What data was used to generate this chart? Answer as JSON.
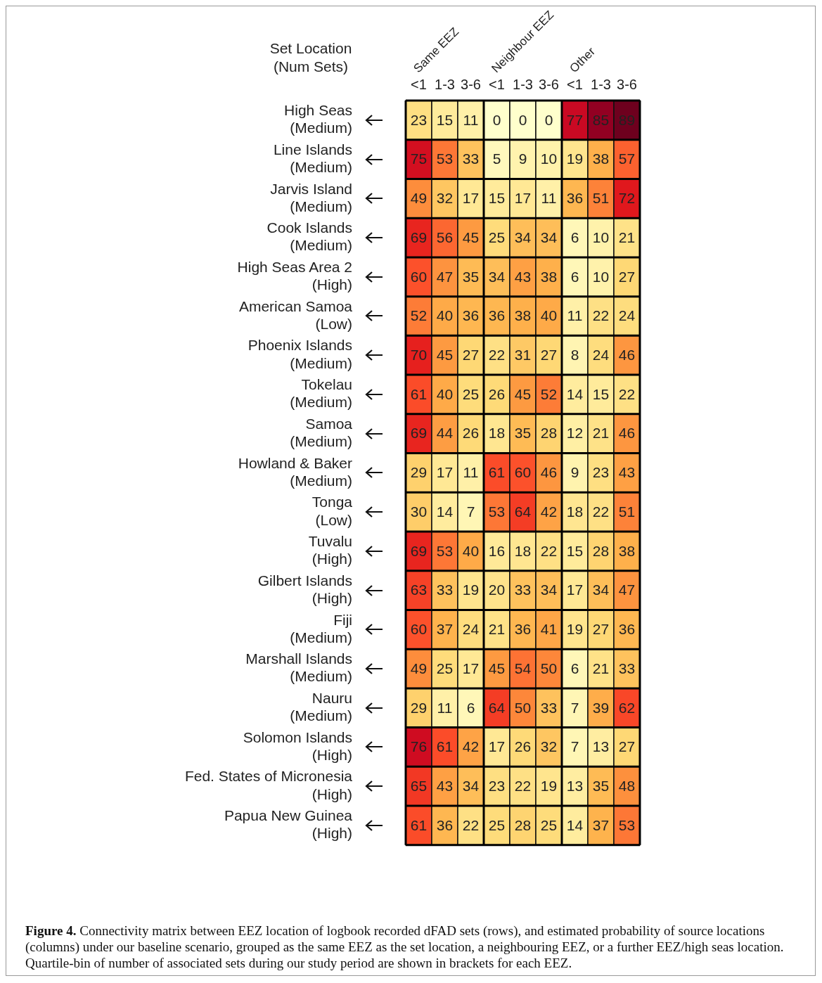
{
  "chart_data": {
    "type": "heatmap",
    "ylabel": "Set Location (Num Sets)",
    "categories": [
      "<1",
      "1-3",
      "3-6",
      "<1",
      "1-3",
      "3-6",
      "<1",
      "1-3",
      "3-6"
    ],
    "y_categories": [
      "High Seas (Medium)",
      "Line Islands (Medium)",
      "Jarvis Island (Medium)",
      "Cook Islands (Medium)",
      "High Seas Area 2 (High)",
      "American Samoa (Low)",
      "Phoenix Islands (Medium)",
      "Tokelau (Medium)",
      "Samoa (Medium)",
      "Howland & Baker (Medium)",
      "Tonga (Low)",
      "Tuvalu (High)",
      "Gilbert Islands (High)",
      "Fiji (Medium)",
      "Marshall Islands (Medium)",
      "Nauru (Medium)",
      "Solomon Islands (High)",
      "Fed. States of Micronesia (High)",
      "Papua New Guinea (High)"
    ],
    "cells": [
      [
        23,
        15,
        11,
        0,
        0,
        0,
        77,
        85,
        89
      ],
      [
        75,
        53,
        33,
        5,
        9,
        10,
        19,
        38,
        57
      ],
      [
        49,
        32,
        17,
        15,
        17,
        11,
        36,
        51,
        72
      ],
      [
        69,
        56,
        45,
        25,
        34,
        34,
        6,
        10,
        21
      ],
      [
        60,
        47,
        35,
        34,
        43,
        38,
        6,
        10,
        27
      ],
      [
        52,
        40,
        36,
        36,
        38,
        40,
        11,
        22,
        24
      ],
      [
        70,
        45,
        27,
        22,
        31,
        27,
        8,
        24,
        46
      ],
      [
        61,
        40,
        25,
        26,
        45,
        52,
        14,
        15,
        22
      ],
      [
        69,
        44,
        26,
        18,
        35,
        28,
        12,
        21,
        46
      ],
      [
        29,
        17,
        11,
        61,
        60,
        46,
        9,
        23,
        43
      ],
      [
        30,
        14,
        7,
        53,
        64,
        42,
        18,
        22,
        51
      ],
      [
        69,
        53,
        40,
        16,
        18,
        22,
        15,
        28,
        38
      ],
      [
        63,
        33,
        19,
        20,
        33,
        34,
        17,
        34,
        47
      ],
      [
        60,
        37,
        24,
        21,
        36,
        41,
        19,
        27,
        36
      ],
      [
        49,
        25,
        17,
        45,
        54,
        50,
        6,
        21,
        33
      ],
      [
        29,
        11,
        6,
        64,
        50,
        33,
        7,
        39,
        62
      ],
      [
        76,
        61,
        42,
        17,
        26,
        32,
        7,
        13,
        27
      ],
      [
        65,
        43,
        34,
        23,
        22,
        19,
        13,
        35,
        48
      ],
      [
        61,
        36,
        22,
        25,
        28,
        25,
        14,
        37,
        53
      ]
    ],
    "data_labels": true,
    "annotations": [
      "Same EEZ",
      "Neighbour EEZ",
      "Other",
      "Figure 4.",
      "Connectivity matrix between EEZ location of logbook recorded dFAD sets (rows), and estimated probability of source locations (columns) under our baseline scenario, grouped as the same EEZ as the set location, a neighbouring EEZ, or a further EEZ/high seas location. Quartile-bin of number of associated sets during our study period are shown in brackets for each EEZ."
    ]
  }
}
